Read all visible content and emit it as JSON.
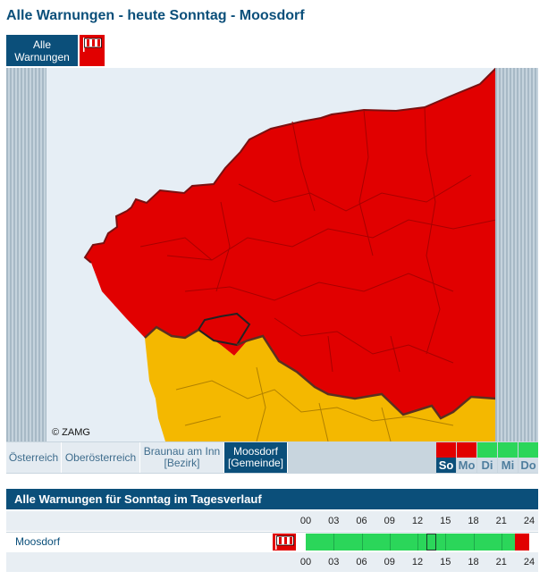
{
  "page_title": "Alle Warnungen - heute Sonntag - Moosdorf",
  "buttons": {
    "alle_warnungen": "Alle Warnungen"
  },
  "map": {
    "copyright": "© ZAMG",
    "colors": {
      "red": "#e10000",
      "yellow": "#f4b800",
      "water": "#e6eef5"
    }
  },
  "tabs": [
    {
      "label": "Österreich"
    },
    {
      "label": "Oberösterreich"
    },
    {
      "label": "Braunau am Inn [Bezirk]"
    },
    {
      "label": "Moosdorf [Gemeinde]"
    }
  ],
  "days": [
    {
      "label": "So",
      "color": "#e10000",
      "active": true
    },
    {
      "label": "Mo",
      "color": "#e10000",
      "active": false
    },
    {
      "label": "Di",
      "color": "#2bd65a",
      "active": false
    },
    {
      "label": "Mi",
      "color": "#2bd65a",
      "active": false
    },
    {
      "label": "Do",
      "color": "#2bd65a",
      "active": false
    }
  ],
  "section": {
    "title": "Alle Warnungen für Sonntag im Tagesverlauf"
  },
  "time_ticks": [
    "00",
    "03",
    "06",
    "09",
    "12",
    "15",
    "18",
    "21",
    "24"
  ],
  "location": {
    "name": "Moosdorf"
  },
  "timeline": {
    "segments": [
      {
        "from": 0,
        "to": 22.5,
        "color": "#2bd65a"
      },
      {
        "from": 22.5,
        "to": 24,
        "color": "#e10000"
      }
    ],
    "now_hour": 13
  }
}
